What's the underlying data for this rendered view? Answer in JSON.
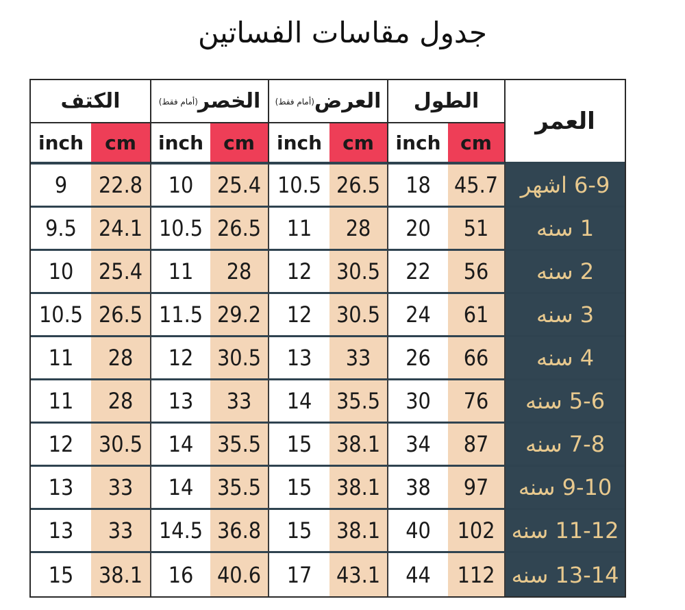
{
  "title": "جدول مقاسات الفساتين",
  "headers": {
    "age": "العمر",
    "length": "الطول",
    "width": "العرض",
    "width_note": "(أمام فقط)",
    "waist": "الخصر",
    "waist_note": "(أمام فقط)",
    "shoulder": "الكتف",
    "unit_inch": "inch",
    "unit_cm": "cm"
  },
  "rows": [
    {
      "age": "6-9 اشهر",
      "length_cm": "45.7",
      "length_inch": "18",
      "width_cm": "26.5",
      "width_inch": "10.5",
      "waist_cm": "25.4",
      "waist_inch": "10",
      "shoulder_cm": "22.8",
      "shoulder_inch": "9"
    },
    {
      "age": "1 سنه",
      "length_cm": "51",
      "length_inch": "20",
      "width_cm": "28",
      "width_inch": "11",
      "waist_cm": "26.5",
      "waist_inch": "10.5",
      "shoulder_cm": "24.1",
      "shoulder_inch": "9.5"
    },
    {
      "age": "2 سنه",
      "length_cm": "56",
      "length_inch": "22",
      "width_cm": "30.5",
      "width_inch": "12",
      "waist_cm": "28",
      "waist_inch": "11",
      "shoulder_cm": "25.4",
      "shoulder_inch": "10"
    },
    {
      "age": "3 سنه",
      "length_cm": "61",
      "length_inch": "24",
      "width_cm": "30.5",
      "width_inch": "12",
      "waist_cm": "29.2",
      "waist_inch": "11.5",
      "shoulder_cm": "26.5",
      "shoulder_inch": "10.5"
    },
    {
      "age": "4 سنه",
      "length_cm": "66",
      "length_inch": "26",
      "width_cm": "33",
      "width_inch": "13",
      "waist_cm": "30.5",
      "waist_inch": "12",
      "shoulder_cm": "28",
      "shoulder_inch": "11"
    },
    {
      "age": "5-6 سنه",
      "length_cm": "76",
      "length_inch": "30",
      "width_cm": "35.5",
      "width_inch": "14",
      "waist_cm": "33",
      "waist_inch": "13",
      "shoulder_cm": "28",
      "shoulder_inch": "11"
    },
    {
      "age": "7-8 سنه",
      "length_cm": "87",
      "length_inch": "34",
      "width_cm": "38.1",
      "width_inch": "15",
      "waist_cm": "35.5",
      "waist_inch": "14",
      "shoulder_cm": "30.5",
      "shoulder_inch": "12"
    },
    {
      "age": "9-10 سنه",
      "length_cm": "97",
      "length_inch": "38",
      "width_cm": "38.1",
      "width_inch": "15",
      "waist_cm": "35.5",
      "waist_inch": "14",
      "shoulder_cm": "33",
      "shoulder_inch": "13"
    },
    {
      "age": "11-12 سنه",
      "length_cm": "102",
      "length_inch": "40",
      "width_cm": "38.1",
      "width_inch": "15",
      "waist_cm": "36.8",
      "waist_inch": "14.5",
      "shoulder_cm": "33",
      "shoulder_inch": "13"
    },
    {
      "age": "13-14 سنه",
      "length_cm": "112",
      "length_inch": "44",
      "width_cm": "43.1",
      "width_inch": "17",
      "waist_cm": "40.6",
      "waist_inch": "16",
      "shoulder_cm": "38.1",
      "shoulder_inch": "15"
    }
  ],
  "colors": {
    "age_column_bg": "#314552",
    "age_column_text": "#e8c98e",
    "cm_header_bg": "#ee3e57",
    "cm_cell_bg": "#f4d6b8",
    "inch_cell_bg": "#ffffff"
  }
}
